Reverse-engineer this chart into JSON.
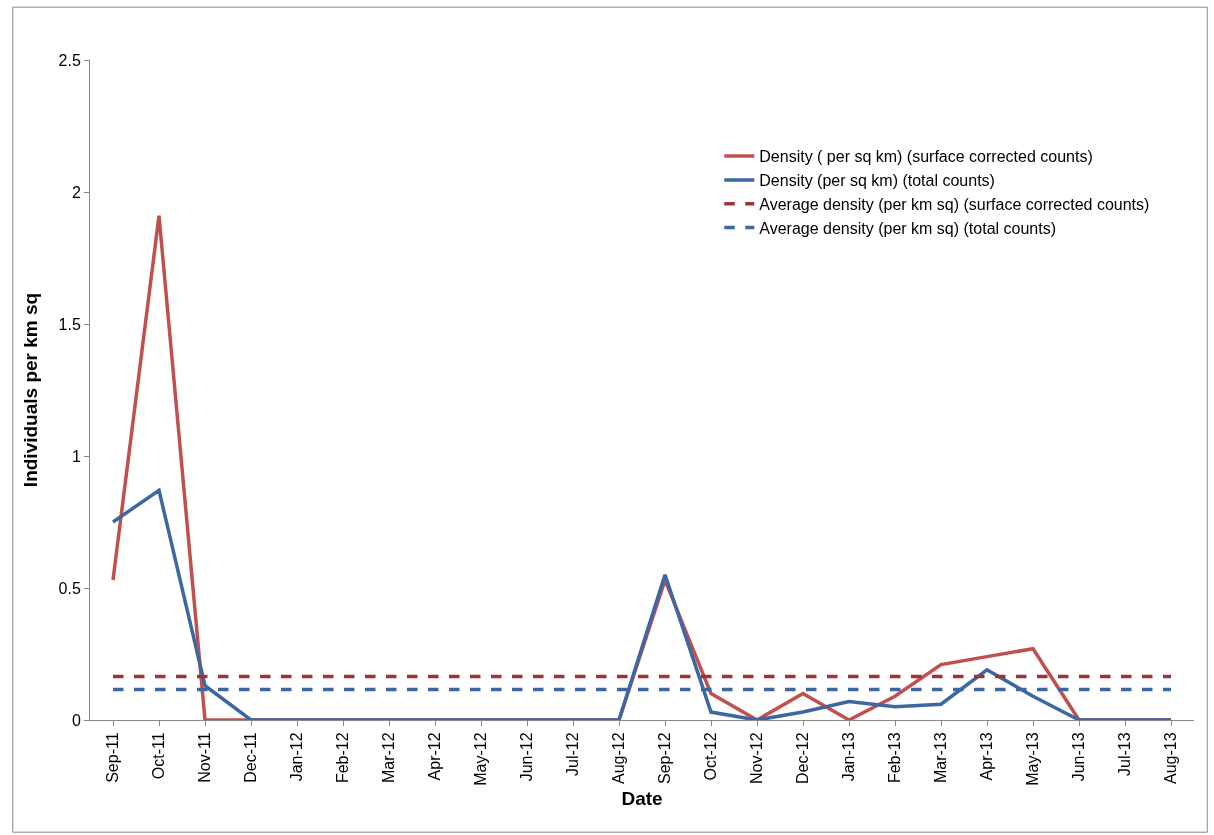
{
  "chart_data": {
    "type": "line",
    "xlabel": "Date",
    "ylabel": "Individuals per km sq",
    "categories": [
      "Sep-11",
      "Oct-11",
      "Nov-11",
      "Dec-11",
      "Jan-12",
      "Feb-12",
      "Mar-12",
      "Apr-12",
      "May-12",
      "Jun-12",
      "Jul-12",
      "Aug-12",
      "Sep-12",
      "Oct-12",
      "Nov-12",
      "Dec-12",
      "Jan-13",
      "Feb-13",
      "Mar-13",
      "Apr-13",
      "May-13",
      "Jun-13",
      "Jul-13",
      "Aug-13"
    ],
    "series": [
      {
        "name": "Density ( per sq km) (surface corrected counts)",
        "color": "#c0504d",
        "line_style": "solid",
        "values": [
          0.53,
          1.91,
          0,
          0,
          0,
          0,
          0,
          0,
          0,
          0,
          0,
          0,
          0.53,
          0.1,
          0,
          0.1,
          0,
          0.09,
          0.21,
          0.24,
          0.27,
          0,
          0,
          0
        ]
      },
      {
        "name": "Density (per sq km) (total counts)",
        "color": "#3c67a0",
        "line_style": "solid",
        "values": [
          0.75,
          0.87,
          0.13,
          0,
          0,
          0,
          0,
          0,
          0,
          0,
          0,
          0,
          0.55,
          0.03,
          0,
          0.03,
          0.07,
          0.05,
          0.06,
          0.19,
          0.09,
          0,
          0,
          0
        ]
      },
      {
        "name": "Average density (per km sq) (surface corrected counts)",
        "color": "#9b3534",
        "line_style": "dashed",
        "values": [
          0.165,
          0.165,
          0.165,
          0.165,
          0.165,
          0.165,
          0.165,
          0.165,
          0.165,
          0.165,
          0.165,
          0.165,
          0.165,
          0.165,
          0.165,
          0.165,
          0.165,
          0.165,
          0.165,
          0.165,
          0.165,
          0.165,
          0.165,
          0.165
        ]
      },
      {
        "name": "Average density (per km sq) (total counts)",
        "color": "#3c67a0",
        "line_style": "dashed",
        "values": [
          0.116,
          0.116,
          0.116,
          0.116,
          0.116,
          0.116,
          0.116,
          0.116,
          0.116,
          0.116,
          0.116,
          0.116,
          0.116,
          0.116,
          0.116,
          0.116,
          0.116,
          0.116,
          0.116,
          0.116,
          0.116,
          0.116,
          0.116,
          0.116
        ]
      }
    ],
    "ylim": [
      0,
      2.5
    ],
    "yticks": [
      0,
      0.5,
      1,
      1.5,
      2,
      2.5
    ],
    "legend": "top right",
    "marker": "none"
  }
}
